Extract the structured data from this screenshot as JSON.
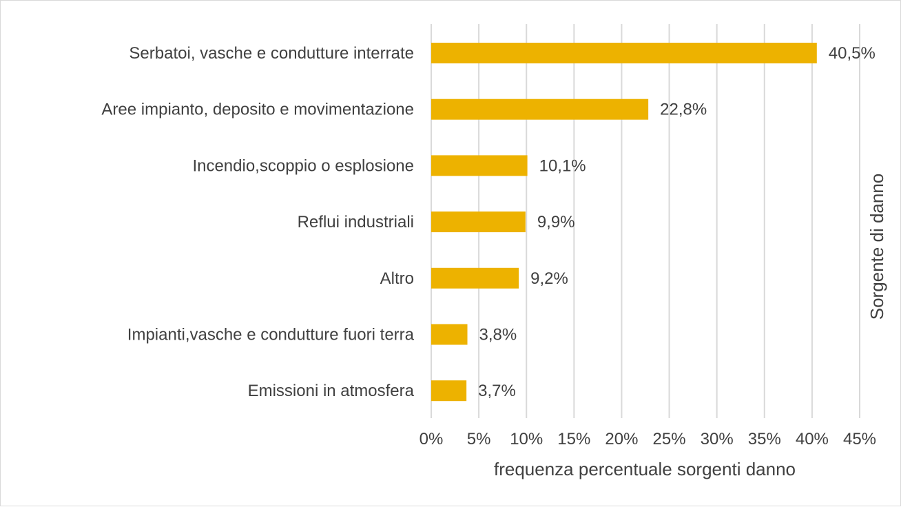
{
  "chart_data": {
    "type": "bar",
    "orientation": "horizontal",
    "categories": [
      "Serbatoi, vasche e condutture interrate",
      "Aree impianto, deposito e movimentazione",
      "Incendio,scoppio o esplosione",
      "Reflui industriali",
      "Altro",
      "Impianti,vasche e condutture fuori terra",
      "Emissioni in atmosfera"
    ],
    "values": [
      40.5,
      22.8,
      10.1,
      9.9,
      9.2,
      3.8,
      3.7
    ],
    "data_labels": [
      "40,5%",
      "22,8%",
      "10,1%",
      "9,9%",
      "9,2%",
      "3,8%",
      "3,7%"
    ],
    "xlabel": "frequenza percentuale sorgenti danno",
    "ylabel": "Sorgente di danno",
    "xlim": [
      0,
      45
    ],
    "x_ticks": [
      0,
      5,
      10,
      15,
      20,
      25,
      30,
      35,
      40,
      45
    ],
    "x_tick_labels": [
      "0%",
      "5%",
      "10%",
      "15%",
      "20%",
      "25%",
      "30%",
      "35%",
      "40%",
      "45%"
    ],
    "grid": true,
    "legend": "none",
    "bar_color": "#EDB200"
  }
}
